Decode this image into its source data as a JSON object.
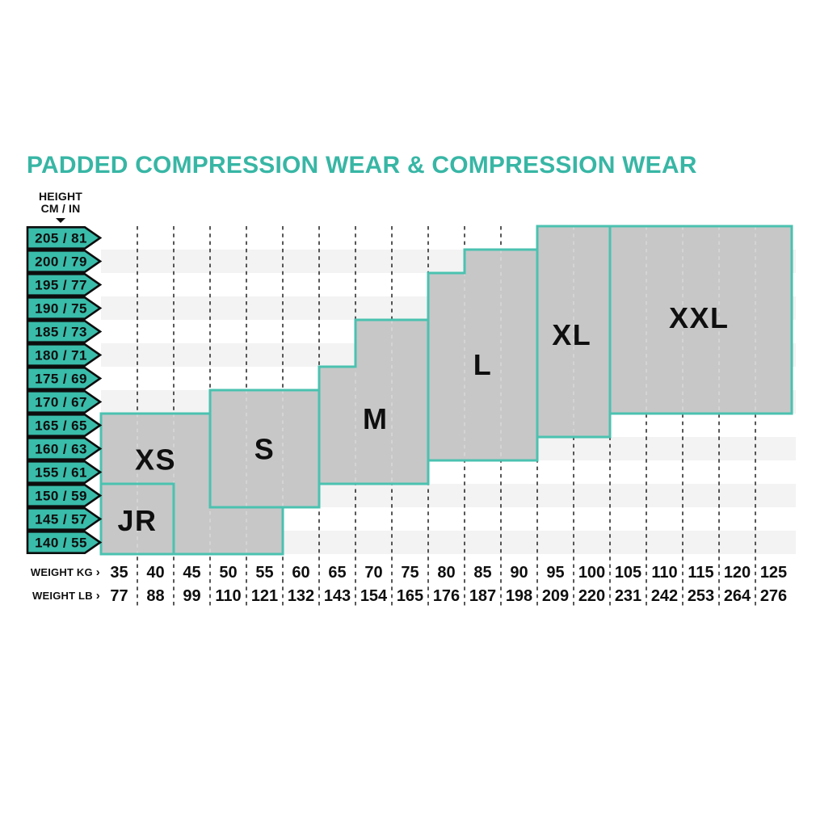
{
  "title": "PADDED COMPRESSION WEAR & COMPRESSION WEAR",
  "icons": {
    "right_arrow": "›"
  },
  "colors": {
    "title_teal": "#38b6a5",
    "chevron_fill": "#39bcaa",
    "chevron_border": "#0d0d0d",
    "region_fill": "#c7c7c7",
    "region_border": "#4bc2b0",
    "stripe": "#f3f3f3",
    "dash_dark": "#2e2e2e",
    "dash_light": "#d8d8d8",
    "text_dark": "#0f0f0f"
  },
  "height_axis": {
    "header_line1": "HEIGHT",
    "header_line2": "CM / IN",
    "labels": [
      "205 / 81",
      "200 / 79",
      "195 / 77",
      "190 / 75",
      "185 / 73",
      "180 / 71",
      "175 / 69",
      "170 / 67",
      "165 / 65",
      "160 / 63",
      "155 / 61",
      "150 / 59",
      "145 / 57",
      "140 / 55"
    ]
  },
  "weight_axis": {
    "kg_label": "WEIGHT KG",
    "lb_label": "WEIGHT LB",
    "kg": [
      "35",
      "40",
      "45",
      "50",
      "55",
      "60",
      "65",
      "70",
      "75",
      "80",
      "85",
      "90",
      "95",
      "100",
      "105",
      "110",
      "115",
      "120",
      "125"
    ],
    "lb": [
      "77",
      "88",
      "99",
      "110",
      "121",
      "132",
      "143",
      "154",
      "165",
      "176",
      "187",
      "198",
      "209",
      "220",
      "231",
      "242",
      "253",
      "264",
      "276"
    ]
  },
  "chart_data": {
    "type": "heatmap",
    "title": "PADDED COMPRESSION WEAR & COMPRESSION WEAR",
    "x_axis": {
      "label": "WEIGHT KG",
      "ticks": [
        35,
        40,
        45,
        50,
        55,
        60,
        65,
        70,
        75,
        80,
        85,
        90,
        95,
        100,
        105,
        110,
        115,
        120,
        125
      ]
    },
    "x_axis_secondary": {
      "label": "WEIGHT LB",
      "ticks": [
        77,
        88,
        99,
        110,
        121,
        132,
        143,
        154,
        165,
        176,
        187,
        198,
        209,
        220,
        231,
        242,
        253,
        264,
        276
      ]
    },
    "y_axis": {
      "label": "HEIGHT CM / IN",
      "ticks": [
        "205 / 81",
        "200 / 79",
        "195 / 77",
        "190 / 75",
        "185 / 73",
        "180 / 71",
        "175 / 69",
        "170 / 67",
        "165 / 65",
        "160 / 63",
        "155 / 61",
        "150 / 59",
        "145 / 57",
        "140 / 55"
      ]
    },
    "grid": {
      "columns": 19,
      "rows": 14,
      "dashed_gridlines": true,
      "alternating_row_stripes": true
    },
    "regions": [
      {
        "size": "JR",
        "weight_kg_cols": [
          35,
          40
        ],
        "height_rows": [
          "150 / 59",
          "140 / 55"
        ],
        "grid_polygon": [
          [
            0,
            11
          ],
          [
            2,
            11
          ],
          [
            2,
            14
          ],
          [
            0,
            14
          ]
        ],
        "label_pos": [
          1.0,
          12.55
        ]
      },
      {
        "size": "XS",
        "weight_kg_cols": [
          35,
          55
        ],
        "height_rows": [
          "165 / 65",
          "140 / 55"
        ],
        "grid_polygon": [
          [
            0,
            8
          ],
          [
            5,
            8
          ],
          [
            5,
            14
          ],
          [
            0,
            14
          ]
        ],
        "label_pos": [
          1.5,
          9.95
        ]
      },
      {
        "size": "S",
        "weight_kg_cols": [
          50,
          60
        ],
        "height_rows": [
          "170 / 67",
          "150 / 59"
        ],
        "grid_polygon": [
          [
            3,
            7
          ],
          [
            6,
            7
          ],
          [
            6,
            12
          ],
          [
            3,
            12
          ]
        ],
        "label_pos": [
          4.5,
          9.5
        ]
      },
      {
        "size": "M",
        "weight_kg_cols": [
          65,
          75
        ],
        "height_rows": [
          "185 / 73",
          "155 / 61"
        ],
        "grid_polygon": [
          [
            6,
            6
          ],
          [
            7,
            6
          ],
          [
            7,
            4
          ],
          [
            9,
            4
          ],
          [
            9,
            11
          ],
          [
            6,
            11
          ]
        ],
        "label_pos": [
          7.55,
          8.2
        ]
      },
      {
        "size": "L",
        "weight_kg_cols": [
          80,
          90
        ],
        "height_rows": [
          "200 / 79",
          "160 / 63"
        ],
        "grid_polygon": [
          [
            9,
            2
          ],
          [
            10,
            2
          ],
          [
            10,
            1
          ],
          [
            12,
            1
          ],
          [
            12,
            10
          ],
          [
            9,
            10
          ]
        ],
        "label_pos": [
          10.5,
          5.9
        ]
      },
      {
        "size": "XL",
        "weight_kg_cols": [
          95,
          100
        ],
        "height_rows": [
          "205 / 81",
          "165 / 65"
        ],
        "grid_polygon": [
          [
            12,
            0
          ],
          [
            14,
            0
          ],
          [
            14,
            9
          ],
          [
            12,
            9
          ]
        ],
        "label_pos": [
          12.95,
          4.62
        ]
      },
      {
        "size": "XXL",
        "weight_kg_cols": [
          105,
          125
        ],
        "height_rows": [
          "205 / 81",
          "175 / 69"
        ],
        "grid_polygon": [
          [
            14,
            0
          ],
          [
            19,
            0
          ],
          [
            19,
            8
          ],
          [
            14,
            8
          ]
        ],
        "label_pos": [
          16.45,
          3.9
        ]
      }
    ]
  }
}
